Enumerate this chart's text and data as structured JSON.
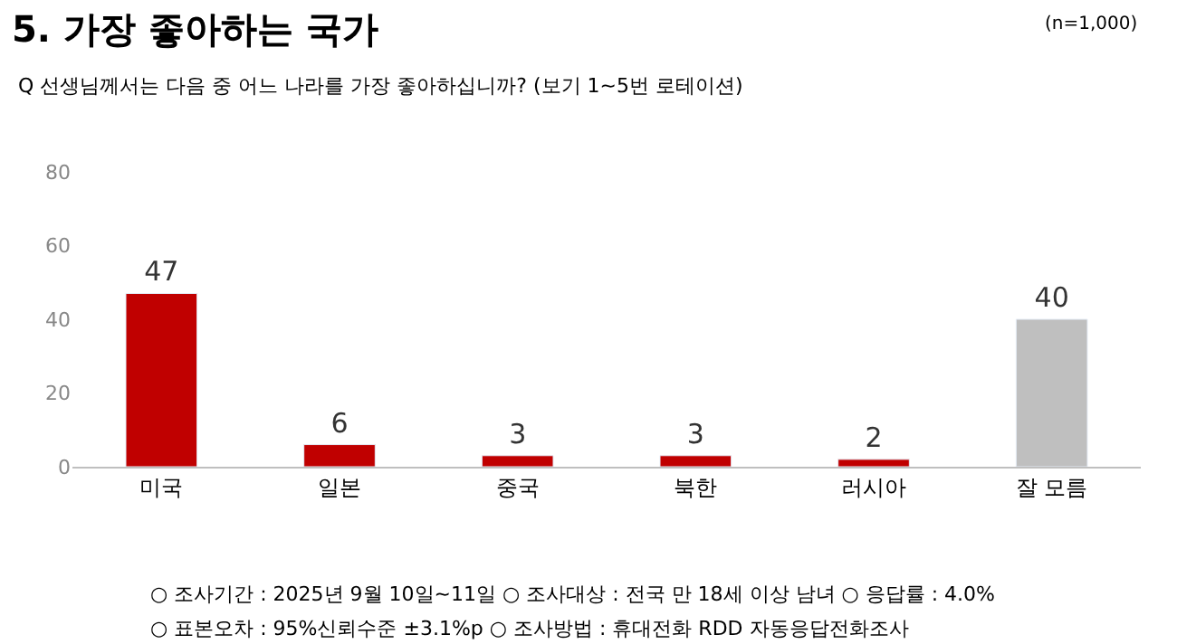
{
  "chart_data": {
    "type": "bar",
    "title": "5. 가장 좋아하는 국가",
    "subtitle": "Q 선생님께서는 다음 중 어느 나라를 가장 좋아하십니까? (보기 1~5번 로테이션)",
    "categories": [
      "미국",
      "일본",
      "중국",
      "북한",
      "러시아",
      "잘 모름"
    ],
    "values": [
      47,
      6,
      3,
      3,
      2,
      40
    ],
    "colors": [
      "#c00000",
      "#c00000",
      "#c00000",
      "#c00000",
      "#c00000",
      "#bfbfbf"
    ],
    "ylim": [
      0,
      80
    ],
    "yticks": [
      0,
      20,
      40,
      60,
      80
    ],
    "data_labels": true,
    "annotations": [
      "(n=1,000)",
      "○ 조사기간 : 2025년 9월 10일~11일 ○ 조사대상 : 전국 만 18세 이상 남녀 ○ 응답률 : 4.0%",
      "○ 표본오차 : 95%신뢰수준 ±3.1%p ○ 조사방법 : 휴대전화 RDD 자동응답전화조사"
    ]
  }
}
